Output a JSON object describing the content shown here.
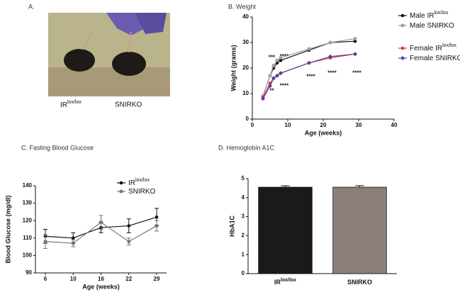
{
  "photo": {
    "title": "A.",
    "labels": [
      {
        "text": "IR",
        "superscript": "lox/lox"
      },
      {
        "text": "SNIRKO"
      }
    ]
  },
  "chart_data": [
    {
      "type": "line",
      "title": "B. Weight",
      "x_label": "Age (weeks)",
      "y_label": "Weight (grams)",
      "x": [
        3,
        5,
        6,
        7,
        8,
        16,
        22,
        29
      ],
      "xlim": [
        0,
        40
      ],
      "xticks": [
        0,
        10,
        20,
        30,
        40
      ],
      "ylim": [
        0,
        40
      ],
      "yticks": [
        0,
        10,
        20,
        30,
        40
      ],
      "series": [
        {
          "name": "Male IR",
          "name_superscript": "lox/lox",
          "color": "#111111",
          "values": [
            9,
            17,
            20,
            22,
            23,
            27,
            30,
            30.5
          ]
        },
        {
          "name": "Male SNIRKO",
          "color": "#a0a0a0",
          "values": [
            9,
            17,
            21,
            23,
            24,
            27.5,
            30,
            31.5
          ]
        },
        {
          "name": "Female IR",
          "name_superscript": "lox/lox",
          "color": "#e0303a",
          "values": [
            8.5,
            14,
            16,
            17,
            18,
            22,
            24,
            25.5
          ]
        },
        {
          "name": "Female SNIRKO",
          "color": "#5a3d9a",
          "values": [
            8,
            13,
            16,
            17,
            18,
            22,
            24.5,
            25.5
          ]
        }
      ],
      "annotations": [
        "***",
        "****",
        "**",
        "****",
        "****",
        "****",
        "****"
      ]
    },
    {
      "type": "line",
      "title": "C. Fasting  Blood Glucose",
      "x_label": "Age (weeks)",
      "y_label": "Blood Glucose (mg/dl)",
      "categories": [
        "6",
        "10",
        "16",
        "22",
        "29"
      ],
      "ylim": [
        90,
        140
      ],
      "yticks": [
        90,
        100,
        110,
        120,
        130,
        140
      ],
      "series": [
        {
          "name": "IR",
          "name_superscript": "lox/lox",
          "color": "#111111",
          "values": [
            111,
            110,
            116,
            117,
            122
          ],
          "errors": [
            4,
            3,
            3,
            4,
            5
          ]
        },
        {
          "name": "SNIRKO",
          "color": "#777777",
          "values": [
            108,
            107,
            119,
            108,
            117
          ],
          "errors": [
            4,
            2,
            4,
            2,
            3
          ]
        }
      ]
    },
    {
      "type": "bar",
      "title": "D. Hemoglobin A1C",
      "y_label": "HbA1C",
      "categories": [
        {
          "text": "IR",
          "superscript": "lox/lox"
        },
        {
          "text": "SNIRKO"
        }
      ],
      "values": [
        4.55,
        4.55
      ],
      "errors": [
        0.07,
        0.08
      ],
      "colors": [
        "#1a1a1a",
        "#8a7f7a"
      ],
      "ylim": [
        0,
        5
      ],
      "yticks": [
        0,
        1,
        2,
        3,
        4,
        5
      ]
    }
  ]
}
